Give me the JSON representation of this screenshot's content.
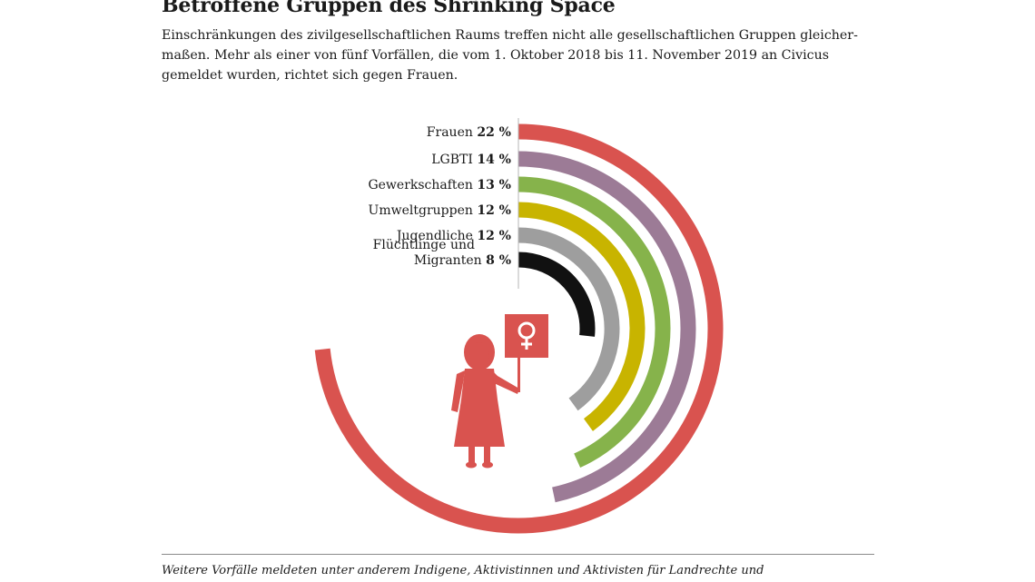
{
  "header": {
    "title": "Betroffene Gruppen des Shrinking Space",
    "subtitle_lines": [
      "Einschränkungen des zivilgesellschaftlichen Raums treffen nicht alle gesellschaftlichen Gruppen gleicher-",
      "maßen. Mehr als einer von fünf Vorfällen, die vom 1. Oktober 2018 bis 11. November 2019 an Civicus",
      "gemeldet wurden, richtet sich gegen Frauen."
    ]
  },
  "chart_data": {
    "type": "radial-bar",
    "unit": "%",
    "categories": [
      {
        "label": [
          "Frauen"
        ],
        "value": 22,
        "display": "22 %",
        "color": "#d9534f"
      },
      {
        "label": [
          "LGBTI"
        ],
        "value": 14,
        "display": "14 %",
        "color": "#9c7b96"
      },
      {
        "label": [
          "Gewerkschaften"
        ],
        "value": 13,
        "display": "13 %",
        "color": "#86b34b"
      },
      {
        "label": [
          "Umweltgruppen"
        ],
        "value": 12,
        "display": "12 %",
        "color": "#c8b400"
      },
      {
        "label": [
          "Jugendliche"
        ],
        "value": 12,
        "display": "12 %",
        "color": "#9e9e9e"
      },
      {
        "label": [
          "Flüchtlinge und",
          "Migranten"
        ],
        "value": 8,
        "display": "8 %",
        "color": "#111111"
      }
    ],
    "value_max": 30,
    "illustration": {
      "icon": "woman-protester-icon",
      "sign": "venus-symbol-icon",
      "color": "#d9534f"
    }
  },
  "footer": {
    "note": "Weitere Vorfälle meldeten unter anderem Indigene, Aktivistinnen und Aktivisten für Landrechte und"
  }
}
